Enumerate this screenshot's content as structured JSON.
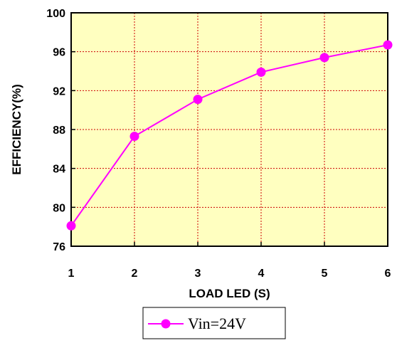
{
  "chart_data": {
    "type": "line",
    "title": "",
    "xlabel": "LOAD LED (S)",
    "ylabel": "EFFICIENCY(%)",
    "x": [
      1,
      2,
      3,
      4,
      5,
      6
    ],
    "xlim": [
      1,
      6
    ],
    "ylim": [
      76,
      100
    ],
    "xticks": [
      "1",
      "2",
      "3",
      "4",
      "5",
      "6"
    ],
    "yticks": [
      "76",
      "80",
      "84",
      "88",
      "92",
      "96",
      "100"
    ],
    "grid": true,
    "legend_position": "bottom-center",
    "series": [
      {
        "name": "Vin=24V",
        "values": [
          78.1,
          87.3,
          91.1,
          93.9,
          95.4,
          96.7
        ]
      }
    ],
    "colors": {
      "line": "#ff00ff",
      "marker": "#ff00ff",
      "plot_background": "#ffffc0",
      "grid": "#cc0000"
    }
  }
}
